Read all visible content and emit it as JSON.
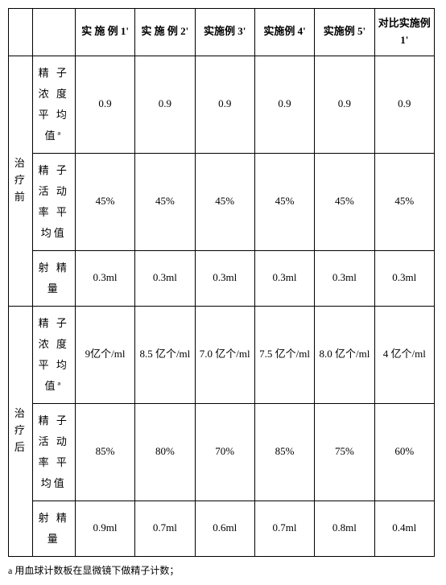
{
  "table": {
    "columns": [
      "实 施 例 1'",
      "实 施 例 2'",
      "实施例 3'",
      "实施例 4'",
      "实施例 5'",
      "对比实施例 1'"
    ],
    "phases": [
      {
        "label": "治疗前",
        "metrics": [
          {
            "label": "精 子 浓 度 平 均 值ª",
            "values": [
              "0.9",
              "0.9",
              "0.9",
              "0.9",
              "0.9",
              "0.9"
            ]
          },
          {
            "label": "精 子 活 动 率 平 均值",
            "values": [
              "45%",
              "45%",
              "45%",
              "45%",
              "45%",
              "45%"
            ]
          },
          {
            "label": "射 精 量",
            "values": [
              "0.3ml",
              "0.3ml",
              "0.3ml",
              "0.3ml",
              "0.3ml",
              "0.3ml"
            ]
          }
        ]
      },
      {
        "label": "治疗后",
        "metrics": [
          {
            "label": "精 子 浓 度 平 均 值ª",
            "values": [
              "9亿个/ml",
              "8.5 亿个/ml",
              "7.0 亿个/ml",
              "7.5 亿个/ml",
              "8.0 亿个/ml",
              "4 亿个/ml"
            ]
          },
          {
            "label": "精 子 活 动 率 平 均值",
            "values": [
              "85%",
              "80%",
              "70%",
              "85%",
              "75%",
              "60%"
            ]
          },
          {
            "label": "射 精 量",
            "values": [
              "0.9ml",
              "0.7ml",
              "0.6ml",
              "0.7ml",
              "0.8ml",
              "0.4ml"
            ]
          }
        ]
      }
    ]
  },
  "footnote": "a 用血球计数板在显微镜下做精子计数；",
  "styling": {
    "border_color": "#000000",
    "background_color": "#ffffff",
    "text_color": "#000000",
    "font_family": "SimSun",
    "base_font_size": 13
  }
}
